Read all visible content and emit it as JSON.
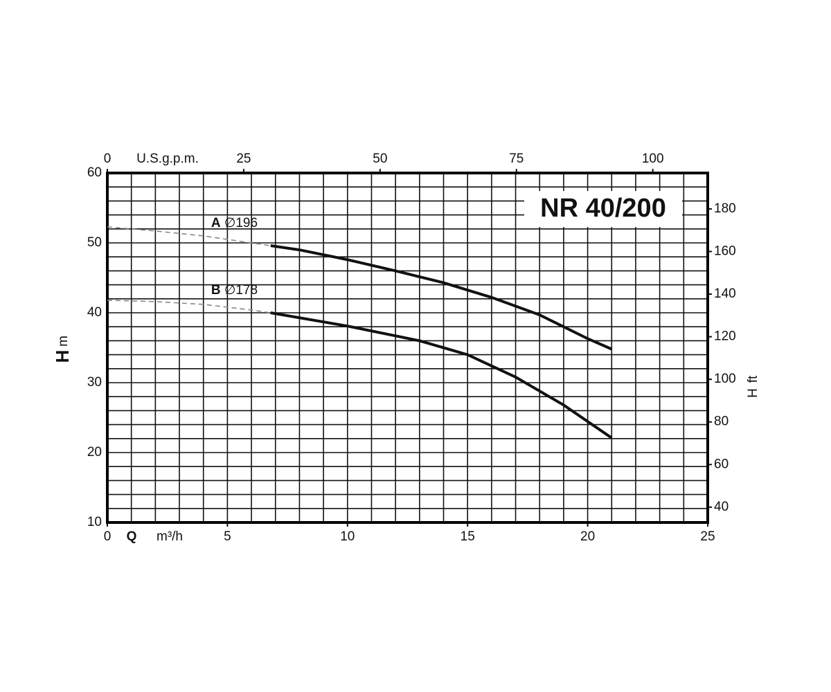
{
  "chart_data": {
    "type": "line",
    "title": "NR 40/200",
    "x_label": {
      "symbol": "Q",
      "unit": "m³/h"
    },
    "x2_label": "U.S.g.p.m.",
    "y_label": {
      "symbol": "H",
      "unit": "m"
    },
    "y2_label": {
      "symbol": "H",
      "unit": "ft"
    },
    "xlim": [
      0,
      25
    ],
    "xticks": [
      0,
      5,
      10,
      15,
      20,
      25
    ],
    "x2lim": [
      0,
      110.07
    ],
    "x2ticks": [
      0,
      25,
      50,
      75,
      100
    ],
    "ylim": [
      10,
      60
    ],
    "yticks": [
      10,
      20,
      30,
      40,
      50,
      60
    ],
    "y2lim": [
      32.81,
      196.85
    ],
    "y2ticks": [
      40,
      60,
      80,
      100,
      120,
      140,
      160,
      180
    ],
    "xgrid": [
      1,
      2,
      3,
      4,
      5,
      6,
      7,
      8,
      9,
      10,
      11,
      12,
      13,
      14,
      15,
      16,
      17,
      18,
      19,
      20,
      21,
      22,
      23,
      24
    ],
    "ygrid": [
      12,
      14,
      16,
      18,
      20,
      22,
      24,
      26,
      28,
      30,
      32,
      34,
      36,
      38,
      40,
      42,
      44,
      46,
      48,
      50,
      52,
      54,
      56,
      58
    ],
    "grid": true,
    "series": [
      {
        "name": "A",
        "label": "∅196",
        "color": "#111111",
        "dashed_color": "#888888",
        "dashed": {
          "x": [
            0,
            2,
            4,
            6,
            6.8
          ],
          "values": [
            52.3,
            51.7,
            51.0,
            50.0,
            49.6
          ]
        },
        "solid": {
          "x": [
            6.8,
            8,
            10,
            12,
            14,
            16,
            18,
            19,
            20,
            21
          ],
          "values": [
            49.6,
            49.0,
            47.6,
            46.0,
            44.3,
            42.2,
            39.7,
            38.0,
            36.3,
            34.8
          ]
        }
      },
      {
        "name": "B",
        "label": "∅178",
        "color": "#111111",
        "dashed_color": "#888888",
        "dashed": {
          "x": [
            0,
            2,
            4,
            6,
            6.8
          ],
          "values": [
            41.8,
            41.6,
            41.2,
            40.4,
            40.0
          ]
        },
        "solid": {
          "x": [
            6.8,
            10,
            13,
            15,
            17,
            19,
            21
          ],
          "values": [
            40.0,
            38.1,
            36.0,
            34.0,
            30.8,
            26.8,
            22.1
          ]
        }
      }
    ]
  }
}
